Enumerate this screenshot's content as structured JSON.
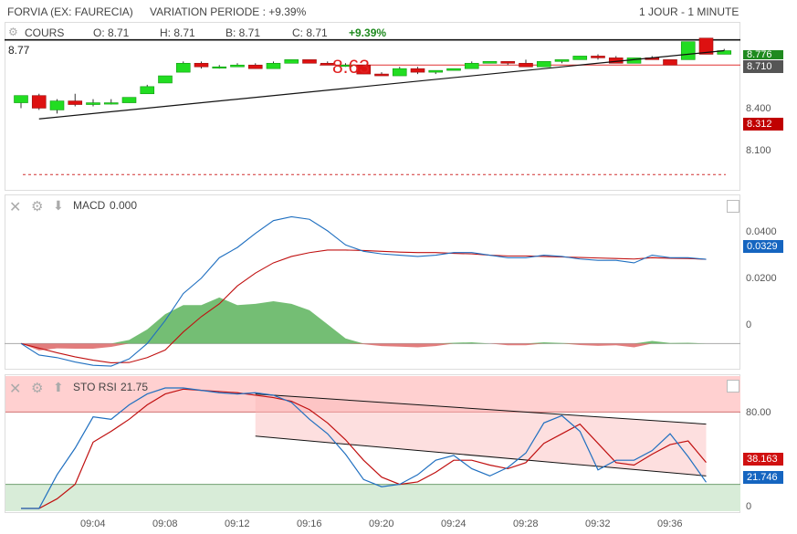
{
  "header": {
    "name": "FORVIA (EX: FAURECIA)",
    "variation": "VARIATION PERIODE : +9.39%",
    "period": "1 JOUR - 1 MINUTE"
  },
  "price_panel": {
    "label": "COURS",
    "open": "O: 8.71",
    "high": "H: 8.71",
    "low": "B: 8.71",
    "close": "C: 8.71",
    "change": "+9.39%",
    "level_left": "8.77",
    "big_value": "8.63",
    "ticks": [
      "8.400",
      "8.100"
    ],
    "tags": [
      {
        "text": "8.776",
        "color": "#1f8a1f"
      },
      {
        "text": "8.710",
        "color": "#555555"
      },
      {
        "text": "8.312",
        "color": "#c00000"
      }
    ]
  },
  "macd_panel": {
    "label": "MACD",
    "value": "0.000",
    "ticks": [
      "0.0400",
      "0.0200",
      "0"
    ],
    "tag": {
      "text": "0.0329",
      "color": "#1565c0"
    }
  },
  "sto_panel": {
    "label": "STO RSI",
    "value": "21.75",
    "ticks": [
      "80.00",
      "0"
    ],
    "tags": [
      {
        "text": "38.163",
        "color": "#d01010"
      },
      {
        "text": "21.746",
        "color": "#1565c0"
      }
    ]
  },
  "colors": {
    "up": "#22dd22",
    "down": "#dd1111",
    "macd": "#1f6fc0",
    "signal": "#c01010",
    "hist_pos": "#5cb35c",
    "hist_neg": "#dd6666",
    "overbought": "#ffd0d0",
    "oversold": "#d8ecd8"
  },
  "chart_data": {
    "type": "candlestick",
    "x_ticks": [
      "09:04",
      "09:08",
      "09:12",
      "09:16",
      "09:20",
      "09:24",
      "09:28",
      "09:32",
      "09:36"
    ],
    "x_time_range": [
      "09:00",
      "09:39"
    ],
    "price_ylim": [
      7.94,
      8.86
    ],
    "candles": [
      {
        "o": 8.42,
        "h": 8.46,
        "l": 8.39,
        "c": 8.46
      },
      {
        "o": 8.46,
        "h": 8.47,
        "l": 8.38,
        "c": 8.39
      },
      {
        "o": 8.38,
        "h": 8.44,
        "l": 8.36,
        "c": 8.43
      },
      {
        "o": 8.43,
        "h": 8.47,
        "l": 8.4,
        "c": 8.41
      },
      {
        "o": 8.41,
        "h": 8.44,
        "l": 8.4,
        "c": 8.42
      },
      {
        "o": 8.42,
        "h": 8.44,
        "l": 8.41,
        "c": 8.42
      },
      {
        "o": 8.42,
        "h": 8.45,
        "l": 8.42,
        "c": 8.45
      },
      {
        "o": 8.47,
        "h": 8.52,
        "l": 8.47,
        "c": 8.51
      },
      {
        "o": 8.53,
        "h": 8.57,
        "l": 8.53,
        "c": 8.57
      },
      {
        "o": 8.59,
        "h": 8.65,
        "l": 8.59,
        "c": 8.64
      },
      {
        "o": 8.64,
        "h": 8.65,
        "l": 8.61,
        "c": 8.62
      },
      {
        "o": 8.62,
        "h": 8.63,
        "l": 8.61,
        "c": 8.62
      },
      {
        "o": 8.62,
        "h": 8.64,
        "l": 8.62,
        "c": 8.63
      },
      {
        "o": 8.63,
        "h": 8.64,
        "l": 8.61,
        "c": 8.61
      },
      {
        "o": 8.61,
        "h": 8.65,
        "l": 8.61,
        "c": 8.64
      },
      {
        "o": 8.64,
        "h": 8.66,
        "l": 8.64,
        "c": 8.66
      },
      {
        "o": 8.66,
        "h": 8.66,
        "l": 8.64,
        "c": 8.64
      },
      {
        "o": 8.64,
        "h": 8.65,
        "l": 8.63,
        "c": 8.63
      },
      {
        "o": 8.63,
        "h": 8.64,
        "l": 8.62,
        "c": 8.63
      },
      {
        "o": 8.63,
        "h": 8.63,
        "l": 8.58,
        "c": 8.58
      },
      {
        "o": 8.58,
        "h": 8.59,
        "l": 8.57,
        "c": 8.57
      },
      {
        "o": 8.57,
        "h": 8.62,
        "l": 8.57,
        "c": 8.61
      },
      {
        "o": 8.61,
        "h": 8.62,
        "l": 8.58,
        "c": 8.59
      },
      {
        "o": 8.59,
        "h": 8.6,
        "l": 8.58,
        "c": 8.6
      },
      {
        "o": 8.6,
        "h": 8.61,
        "l": 8.6,
        "c": 8.61
      },
      {
        "o": 8.61,
        "h": 8.65,
        "l": 8.61,
        "c": 8.64
      },
      {
        "o": 8.64,
        "h": 8.65,
        "l": 8.64,
        "c": 8.65
      },
      {
        "o": 8.65,
        "h": 8.65,
        "l": 8.63,
        "c": 8.64
      },
      {
        "o": 8.64,
        "h": 8.66,
        "l": 8.62,
        "c": 8.62
      },
      {
        "o": 8.62,
        "h": 8.65,
        "l": 8.62,
        "c": 8.65
      },
      {
        "o": 8.65,
        "h": 8.66,
        "l": 8.64,
        "c": 8.66
      },
      {
        "o": 8.66,
        "h": 8.68,
        "l": 8.66,
        "c": 8.68
      },
      {
        "o": 8.68,
        "h": 8.69,
        "l": 8.66,
        "c": 8.67
      },
      {
        "o": 8.67,
        "h": 8.68,
        "l": 8.64,
        "c": 8.64
      },
      {
        "o": 8.64,
        "h": 8.67,
        "l": 8.64,
        "c": 8.67
      },
      {
        "o": 8.67,
        "h": 8.68,
        "l": 8.66,
        "c": 8.66
      },
      {
        "o": 8.66,
        "h": 8.66,
        "l": 8.63,
        "c": 8.63
      },
      {
        "o": 8.66,
        "h": 8.76,
        "l": 8.66,
        "c": 8.76
      },
      {
        "o": 8.78,
        "h": 8.78,
        "l": 8.69,
        "c": 8.69
      },
      {
        "o": 8.69,
        "h": 8.72,
        "l": 8.69,
        "c": 8.71
      }
    ],
    "price_lines": {
      "top_level": 8.77,
      "red_level": 8.63,
      "dashed_level": 8.02,
      "trend_start": {
        "t": "09:01",
        "v": 8.33
      },
      "trend_end": {
        "t": "09:39",
        "v": 8.71
      }
    },
    "macd": {
      "ylim": [
        -0.0095,
        0.0575
      ],
      "macd": [
        0.0,
        -0.0045,
        -0.0055,
        -0.0072,
        -0.0085,
        -0.0088,
        -0.006,
        0.0,
        0.009,
        0.0195,
        0.0255,
        0.0335,
        0.0375,
        0.043,
        0.048,
        0.0495,
        0.0485,
        0.044,
        0.0385,
        0.036,
        0.035,
        0.0345,
        0.034,
        0.0345,
        0.0355,
        0.0355,
        0.0345,
        0.0335,
        0.0335,
        0.0345,
        0.034,
        0.033,
        0.0325,
        0.0325,
        0.0315,
        0.0345,
        0.0335,
        0.0335,
        0.0329
      ],
      "signal": [
        0.0,
        -0.0018,
        -0.0036,
        -0.0052,
        -0.0065,
        -0.0075,
        -0.0074,
        -0.0055,
        -0.0025,
        0.0045,
        0.0105,
        0.0155,
        0.0225,
        0.0275,
        0.0315,
        0.034,
        0.0355,
        0.0365,
        0.0365,
        0.0363,
        0.036,
        0.0357,
        0.0355,
        0.0355,
        0.0352,
        0.035,
        0.0345,
        0.0342,
        0.0342,
        0.034,
        0.0338,
        0.0336,
        0.0334,
        0.0332,
        0.033,
        0.0335,
        0.0333,
        0.0332,
        0.0329
      ]
    },
    "sto_rsi": {
      "ylim": [
        0,
        100
      ],
      "overbought": 80,
      "oversold": 20,
      "k": [
        0,
        0,
        28,
        50,
        76,
        74,
        86,
        95,
        100,
        100,
        98,
        96,
        95,
        96,
        94,
        88,
        74,
        62,
        45,
        24,
        18,
        20,
        28,
        40,
        44,
        33,
        27,
        34,
        46,
        71,
        77,
        64,
        32,
        40,
        40,
        48,
        62,
        43,
        21.746
      ],
      "d": [
        0,
        0,
        8,
        20,
        55,
        64,
        74,
        86,
        95,
        99,
        98,
        97,
        96,
        94,
        92,
        89,
        82,
        71,
        57,
        40,
        26,
        20,
        22,
        30,
        40,
        40,
        36,
        33,
        38,
        54,
        62,
        70,
        54,
        38,
        36,
        45,
        53,
        56,
        38.163
      ],
      "channel_upper": [
        {
          "t": "09:13",
          "v": 95
        },
        {
          "t": "09:38",
          "v": 70
        }
      ],
      "channel_lower": [
        {
          "t": "09:13",
          "v": 60
        },
        {
          "t": "09:38",
          "v": 27
        }
      ]
    }
  }
}
